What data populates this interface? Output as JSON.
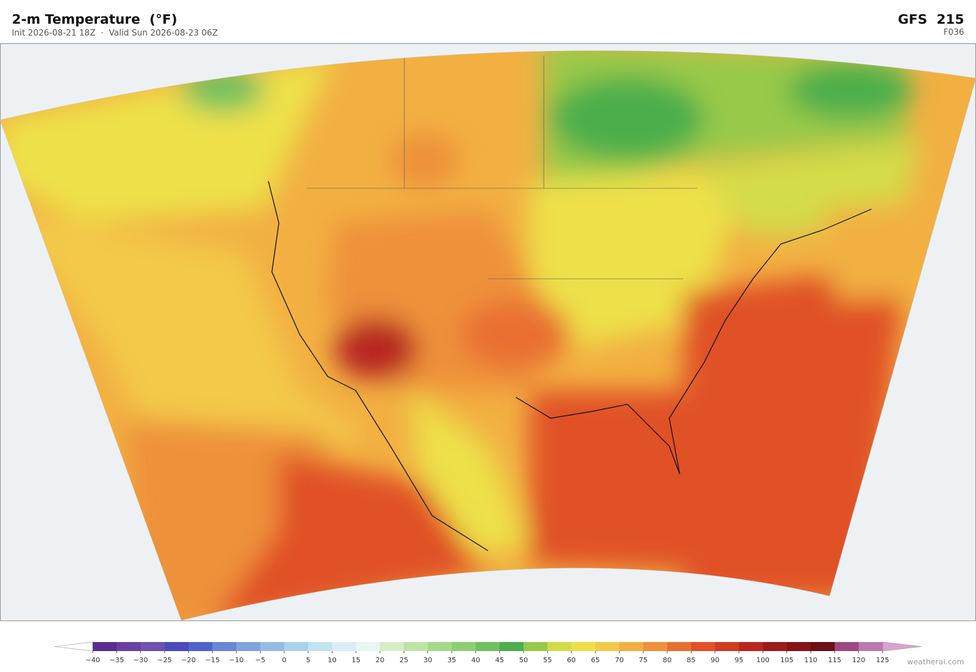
{
  "header": {
    "title": "2-m Temperature  (°F)",
    "subtitle": "Init 2026-08-21 18Z  ·  Valid Sun 2026-08-23 06Z",
    "model": "GFS  215",
    "forecast": "F036"
  },
  "colorbar": {
    "ticks": [
      {
        "value": -40,
        "label": "−40"
      },
      {
        "value": -35,
        "label": "−35"
      },
      {
        "value": -30,
        "label": "−30"
      },
      {
        "value": -25,
        "label": "−25"
      },
      {
        "value": -20,
        "label": "−20"
      },
      {
        "value": -15,
        "label": "−15"
      },
      {
        "value": -10,
        "label": "−10"
      },
      {
        "value": -5,
        "label": "−5"
      },
      0,
      5,
      10,
      15,
      20,
      25,
      30,
      35,
      40,
      45,
      50,
      55,
      60,
      65,
      70,
      75,
      80,
      85,
      90,
      95,
      100,
      105,
      110,
      115,
      120,
      125
    ],
    "colors": [
      "#5a2d8f",
      "#6a3fa0",
      "#7050b0",
      "#4b4bbd",
      "#4f63cc",
      "#6a86d6",
      "#7fa3dc",
      "#93bde4",
      "#aad3ea",
      "#c2e3f0",
      "#d8eef4",
      "#e8f5f0",
      "#d5ecc8",
      "#bfe3a5",
      "#a5d98a",
      "#8dcf75",
      "#6fc160",
      "#4cae4c",
      "#98c94a",
      "#d3dc48",
      "#ede048",
      "#f3c94a",
      "#f2b042",
      "#ee913a",
      "#e96f30",
      "#e05128",
      "#cf3a22",
      "#b82820",
      "#9e1b1c",
      "#841418",
      "#6e1016",
      "#9c4a80",
      "#bd78b0"
    ],
    "under_color": "#ffffff",
    "over_color": "#d8a4cc"
  },
  "watermark": "weatherai.com"
}
